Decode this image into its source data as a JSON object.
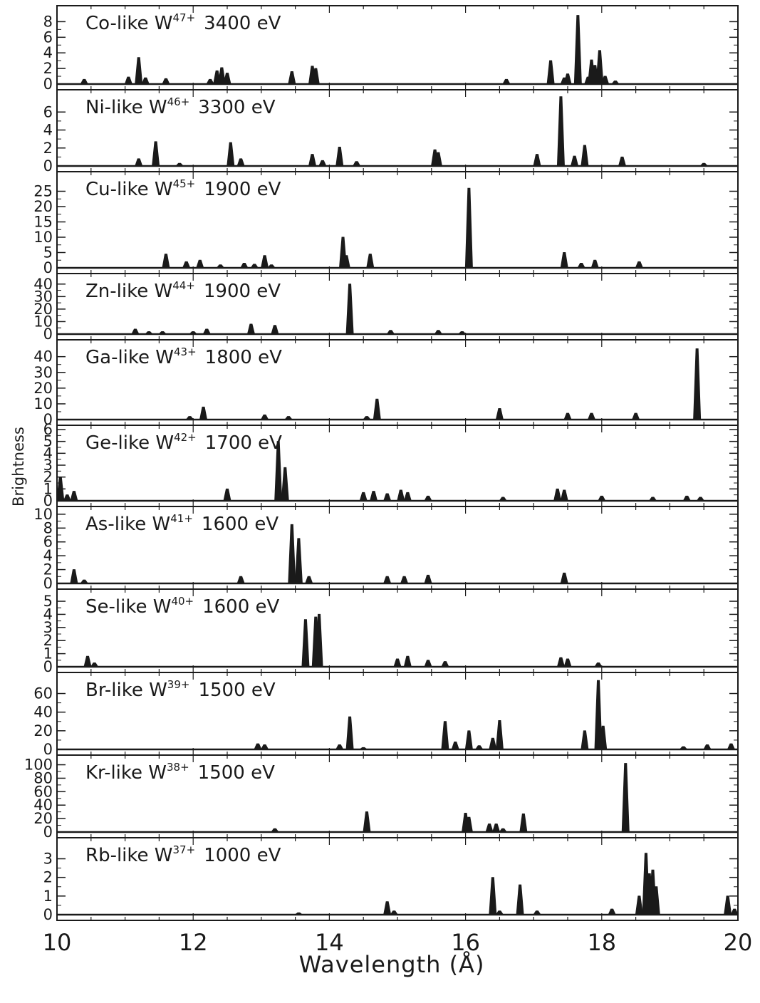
{
  "chart_data": {
    "type": "line",
    "xlabel": "Wavelength (Å)",
    "ylabel": "Brightness",
    "xlim": [
      10,
      20
    ],
    "xticks": [
      "10",
      "12",
      "14",
      "16",
      "18",
      "20"
    ],
    "grid": false,
    "panels": [
      {
        "ion": "Co-like",
        "charge": "47+",
        "energy": "3400 eV",
        "ylim": [
          0,
          9.5
        ],
        "yticks": [
          "0",
          "2",
          "4",
          "6",
          "8"
        ],
        "peaks": [
          [
            10.4,
            0.6
          ],
          [
            11.05,
            0.9
          ],
          [
            11.2,
            3.4
          ],
          [
            11.3,
            0.8
          ],
          [
            11.6,
            0.7
          ],
          [
            12.25,
            0.6
          ],
          [
            12.35,
            1.7
          ],
          [
            12.42,
            2.1
          ],
          [
            12.5,
            1.4
          ],
          [
            13.45,
            1.6
          ],
          [
            13.75,
            2.3
          ],
          [
            13.8,
            2.0
          ],
          [
            16.6,
            0.6
          ],
          [
            17.25,
            3.0
          ],
          [
            17.45,
            0.8
          ],
          [
            17.5,
            1.3
          ],
          [
            17.65,
            8.8
          ],
          [
            17.8,
            0.9
          ],
          [
            17.85,
            3.1
          ],
          [
            17.9,
            2.4
          ],
          [
            17.97,
            4.3
          ],
          [
            18.05,
            1.0
          ],
          [
            18.2,
            0.4
          ]
        ]
      },
      {
        "ion": "Ni-like",
        "charge": "46+",
        "energy": "3300 eV",
        "ylim": [
          0,
          8
        ],
        "yticks": [
          "0",
          "2",
          "4",
          "6"
        ],
        "peaks": [
          [
            11.2,
            0.8
          ],
          [
            11.45,
            2.7
          ],
          [
            11.8,
            0.3
          ],
          [
            12.55,
            2.6
          ],
          [
            12.7,
            0.8
          ],
          [
            13.75,
            1.3
          ],
          [
            13.9,
            0.6
          ],
          [
            14.15,
            2.1
          ],
          [
            14.4,
            0.5
          ],
          [
            15.55,
            1.8
          ],
          [
            15.6,
            1.5
          ],
          [
            17.05,
            1.3
          ],
          [
            17.4,
            7.7
          ],
          [
            17.6,
            1.1
          ],
          [
            17.75,
            2.3
          ],
          [
            18.3,
            1.0
          ],
          [
            19.5,
            0.3
          ]
        ]
      },
      {
        "ion": "Cu-like",
        "charge": "45+",
        "energy": "1900 eV",
        "ylim": [
          0,
          30
        ],
        "yticks": [
          "0",
          "5",
          "10",
          "15",
          "20",
          "25"
        ],
        "peaks": [
          [
            11.6,
            4.5
          ],
          [
            11.9,
            2.0
          ],
          [
            12.1,
            2.5
          ],
          [
            12.4,
            1.0
          ],
          [
            12.75,
            1.5
          ],
          [
            12.9,
            1.2
          ],
          [
            13.05,
            4.0
          ],
          [
            13.15,
            1.0
          ],
          [
            14.2,
            10.0
          ],
          [
            14.25,
            4.0
          ],
          [
            14.6,
            4.5
          ],
          [
            16.05,
            26.0
          ],
          [
            17.45,
            5.0
          ],
          [
            17.7,
            1.5
          ],
          [
            17.9,
            2.5
          ],
          [
            18.55,
            2.0
          ]
        ]
      },
      {
        "ion": "Zn-like",
        "charge": "44+",
        "energy": "1900 eV",
        "ylim": [
          0,
          45
        ],
        "yticks": [
          "0",
          "10",
          "20",
          "30",
          "40"
        ],
        "peaks": [
          [
            11.15,
            4.0
          ],
          [
            11.35,
            2.0
          ],
          [
            11.55,
            2.0
          ],
          [
            12.0,
            2.0
          ],
          [
            12.2,
            4.0
          ],
          [
            12.85,
            8.0
          ],
          [
            13.2,
            7.0
          ],
          [
            14.3,
            40.0
          ],
          [
            14.9,
            3.0
          ],
          [
            15.6,
            3.0
          ],
          [
            15.95,
            2.0
          ]
        ]
      },
      {
        "ion": "Ga-like",
        "charge": "43+",
        "energy": "1800 eV",
        "ylim": [
          0,
          48
        ],
        "yticks": [
          "0",
          "10",
          "20",
          "30",
          "40"
        ],
        "peaks": [
          [
            11.95,
            2.0
          ],
          [
            12.15,
            8.0
          ],
          [
            13.05,
            3.0
          ],
          [
            13.4,
            2.0
          ],
          [
            14.55,
            2.0
          ],
          [
            14.7,
            13.0
          ],
          [
            16.5,
            7.0
          ],
          [
            17.5,
            4.0
          ],
          [
            17.85,
            4.0
          ],
          [
            18.5,
            4.0
          ],
          [
            19.4,
            45.0
          ]
        ]
      },
      {
        "ion": "Ge-like",
        "charge": "42+",
        "energy": "1700 eV",
        "ylim": [
          0,
          6
        ],
        "yticks": [
          "0",
          "1",
          "2",
          "3",
          "4",
          "5",
          "6"
        ],
        "peaks": [
          [
            10.05,
            2.0
          ],
          [
            10.15,
            0.5
          ],
          [
            10.25,
            0.8
          ],
          [
            12.5,
            1.0
          ],
          [
            13.25,
            5.0
          ],
          [
            13.35,
            2.8
          ],
          [
            14.5,
            0.7
          ],
          [
            14.65,
            0.8
          ],
          [
            14.85,
            0.6
          ],
          [
            15.05,
            0.9
          ],
          [
            15.15,
            0.7
          ],
          [
            15.45,
            0.4
          ],
          [
            16.55,
            0.3
          ],
          [
            17.35,
            1.0
          ],
          [
            17.45,
            0.9
          ],
          [
            18.0,
            0.4
          ],
          [
            18.75,
            0.3
          ],
          [
            19.25,
            0.4
          ],
          [
            19.45,
            0.3
          ]
        ]
      },
      {
        "ion": "As-like",
        "charge": "41+",
        "energy": "1600 eV",
        "ylim": [
          0,
          10.5
        ],
        "yticks": [
          "0",
          "2",
          "4",
          "6",
          "8",
          "10"
        ],
        "peaks": [
          [
            10.25,
            2.0
          ],
          [
            10.4,
            0.5
          ],
          [
            12.7,
            1.0
          ],
          [
            13.45,
            8.5
          ],
          [
            13.55,
            6.5
          ],
          [
            13.7,
            1.0
          ],
          [
            14.85,
            1.0
          ],
          [
            15.1,
            1.0
          ],
          [
            15.45,
            1.2
          ],
          [
            17.45,
            1.5
          ]
        ]
      },
      {
        "ion": "Se-like",
        "charge": "40+",
        "energy": "1600 eV",
        "ylim": [
          0,
          5.6
        ],
        "yticks": [
          "0",
          "1",
          "2",
          "3",
          "4",
          "5"
        ],
        "peaks": [
          [
            10.45,
            0.8
          ],
          [
            10.55,
            0.3
          ],
          [
            13.65,
            3.6
          ],
          [
            13.8,
            3.8
          ],
          [
            13.85,
            4.0
          ],
          [
            15.0,
            0.6
          ],
          [
            15.15,
            0.8
          ],
          [
            15.45,
            0.5
          ],
          [
            15.7,
            0.4
          ],
          [
            17.4,
            0.7
          ],
          [
            17.5,
            0.6
          ],
          [
            17.95,
            0.3
          ]
        ]
      },
      {
        "ion": "Br-like",
        "charge": "39+",
        "energy": "1500 eV",
        "ylim": [
          0,
          78
        ],
        "yticks": [
          "0",
          "20",
          "40",
          "60"
        ],
        "peaks": [
          [
            12.95,
            6.0
          ],
          [
            13.05,
            5.0
          ],
          [
            14.15,
            5.0
          ],
          [
            14.3,
            35.0
          ],
          [
            14.5,
            2.0
          ],
          [
            15.7,
            30.0
          ],
          [
            15.85,
            8.0
          ],
          [
            16.05,
            20.0
          ],
          [
            16.2,
            4.0
          ],
          [
            16.4,
            12.0
          ],
          [
            16.5,
            31.0
          ],
          [
            17.75,
            20.0
          ],
          [
            17.95,
            74.0
          ],
          [
            18.02,
            25.0
          ],
          [
            19.2,
            3.0
          ],
          [
            19.55,
            5.0
          ],
          [
            19.9,
            6.0
          ]
        ]
      },
      {
        "ion": "Kr-like",
        "charge": "38+",
        "energy": "1500 eV",
        "ylim": [
          0,
          108
        ],
        "yticks": [
          "0",
          "20",
          "40",
          "60",
          "80",
          "100"
        ],
        "peaks": [
          [
            13.2,
            5.0
          ],
          [
            14.55,
            30.0
          ],
          [
            16.0,
            28.0
          ],
          [
            16.05,
            22.0
          ],
          [
            16.35,
            12.0
          ],
          [
            16.45,
            12.0
          ],
          [
            16.55,
            5.0
          ],
          [
            16.85,
            27.0
          ],
          [
            18.35,
            102.0
          ]
        ]
      },
      {
        "ion": "Rb-like",
        "charge": "37+",
        "energy": "1000 eV",
        "ylim": [
          0,
          3.9
        ],
        "yticks": [
          "0",
          "1",
          "2",
          "3"
        ],
        "peaks": [
          [
            13.55,
            0.1
          ],
          [
            14.85,
            0.7
          ],
          [
            14.95,
            0.2
          ],
          [
            16.4,
            2.0
          ],
          [
            16.5,
            0.2
          ],
          [
            16.8,
            1.6
          ],
          [
            17.05,
            0.2
          ],
          [
            18.15,
            0.3
          ],
          [
            18.55,
            1.0
          ],
          [
            18.65,
            3.3
          ],
          [
            18.7,
            2.2
          ],
          [
            18.75,
            2.4
          ],
          [
            18.8,
            1.5
          ],
          [
            19.85,
            1.0
          ],
          [
            19.95,
            0.3
          ]
        ]
      }
    ]
  }
}
